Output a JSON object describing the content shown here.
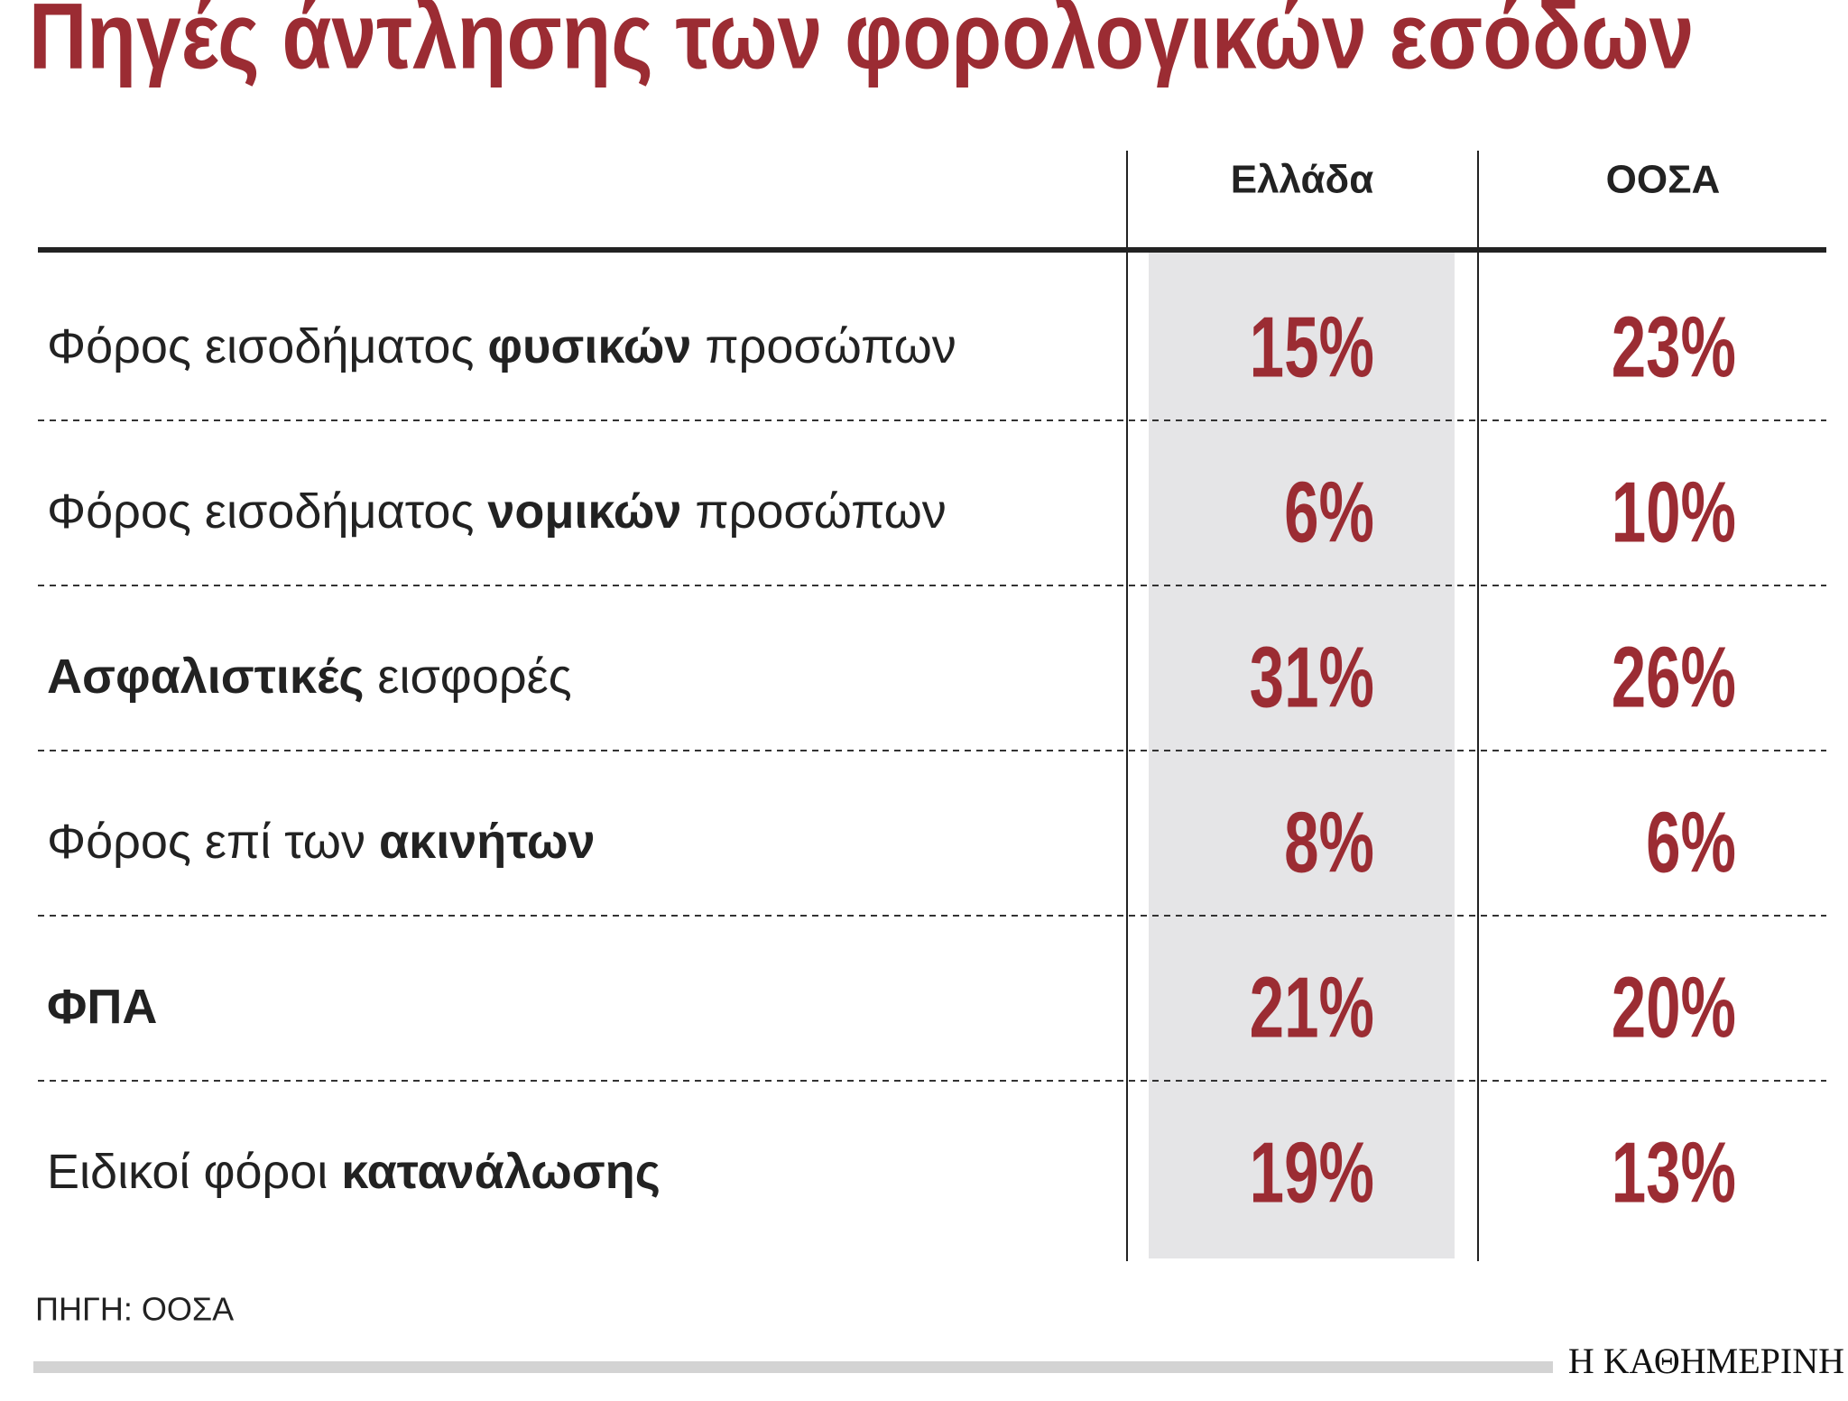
{
  "title": "Πηγές άντλησης των φορολογικών εσόδων",
  "table": {
    "columns": [
      "Ελλάδα",
      "ΟΟΣΑ"
    ],
    "rows": [
      {
        "label": [
          {
            "text": "Φόρος εισοδήματος ",
            "bold": false
          },
          {
            "text": "φυσικών",
            "bold": true
          },
          {
            "text": " προσώπων",
            "bold": false
          }
        ],
        "cells": [
          "15%",
          "23%"
        ]
      },
      {
        "label": [
          {
            "text": "Φόρος εισοδήματος ",
            "bold": false
          },
          {
            "text": "νομικών",
            "bold": true
          },
          {
            "text": " προσώπων",
            "bold": false
          }
        ],
        "cells": [
          "6%",
          "10%"
        ]
      },
      {
        "label": [
          {
            "text": "Ασφαλιστικές",
            "bold": true
          },
          {
            "text": " εισφορές",
            "bold": false
          }
        ],
        "cells": [
          "31%",
          "26%"
        ]
      },
      {
        "label": [
          {
            "text": "Φόρος επί των ",
            "bold": false
          },
          {
            "text": "ακινήτων",
            "bold": true
          }
        ],
        "cells": [
          "8%",
          "6%"
        ]
      },
      {
        "label": [
          {
            "text": "ΦΠΑ",
            "bold": true
          }
        ],
        "cells": [
          "21%",
          "20%"
        ]
      },
      {
        "label": [
          {
            "text": "Ειδικοί φόροι ",
            "bold": false
          },
          {
            "text": "κατανάλωσης",
            "bold": true
          }
        ],
        "cells": [
          "19%",
          "13%"
        ]
      }
    ]
  },
  "source": "ΠΗΓΗ: ΟΟΣΑ",
  "brand": "Η ΚΑΘΗΜΕΡΙΝΗ"
}
